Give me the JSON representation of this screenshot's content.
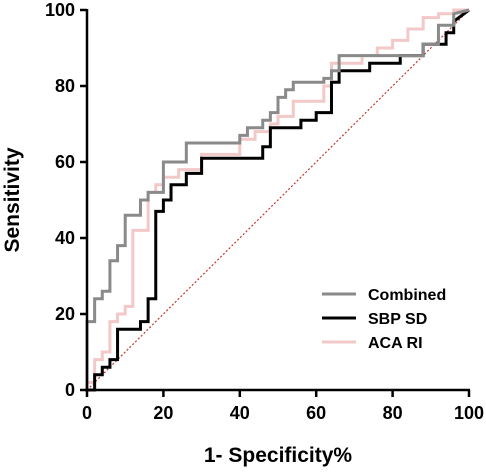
{
  "chart_data": {
    "type": "line",
    "title": "",
    "xlabel": "1- Specificity%",
    "ylabel": "Sensitivity",
    "xlim": [
      0,
      100
    ],
    "ylim": [
      0,
      100
    ],
    "x_ticks": [
      0,
      20,
      40,
      60,
      80,
      100
    ],
    "y_ticks": [
      0,
      20,
      40,
      60,
      80,
      100
    ],
    "grid": false,
    "legend_position": "bottom-right",
    "reference_line": {
      "color": "#c0392b",
      "style": "dotted",
      "points": [
        [
          0,
          0
        ],
        [
          100,
          100
        ]
      ]
    },
    "series": [
      {
        "name": "Combined",
        "color": "#8a8a8a",
        "x": [
          0,
          0,
          2,
          2,
          4,
          4,
          6,
          6,
          8,
          8,
          10,
          10,
          14,
          14,
          16,
          16,
          20,
          20,
          26,
          26,
          40,
          40,
          42,
          42,
          46,
          46,
          48,
          48,
          50,
          50,
          52,
          52,
          54,
          54,
          56,
          56,
          62,
          62,
          64,
          64,
          66,
          66,
          88,
          88,
          92,
          92,
          96,
          96,
          100
        ],
        "y": [
          0,
          18,
          18,
          24,
          24,
          26,
          26,
          34,
          34,
          38,
          38,
          46,
          46,
          50,
          50,
          52,
          52,
          60,
          60,
          65,
          65,
          67,
          67,
          69,
          69,
          71,
          71,
          73,
          73,
          77,
          77,
          79,
          79,
          81,
          81,
          81,
          81,
          82,
          82,
          84,
          84,
          88,
          88,
          91,
          91,
          96,
          96,
          99,
          100
        ]
      },
      {
        "name": "SBP SD",
        "color": "#000000",
        "x": [
          0,
          2,
          2,
          4,
          4,
          6,
          6,
          8,
          8,
          14,
          14,
          16,
          16,
          18,
          18,
          20,
          20,
          22,
          22,
          26,
          26,
          30,
          30,
          46,
          46,
          48,
          48,
          50,
          50,
          56,
          56,
          60,
          60,
          64,
          64,
          66,
          66,
          74,
          74,
          82,
          82,
          88,
          88,
          94,
          94,
          96,
          96,
          100
        ],
        "y": [
          0,
          0,
          4,
          4,
          6,
          6,
          8,
          8,
          16,
          16,
          18,
          18,
          24,
          24,
          47,
          47,
          50,
          50,
          54,
          54,
          57,
          57,
          61,
          61,
          64,
          64,
          69,
          69,
          69,
          69,
          71,
          71,
          73,
          73,
          81,
          81,
          84,
          84,
          86,
          86,
          88,
          88,
          91,
          91,
          94,
          94,
          97,
          100
        ]
      },
      {
        "name": "ACA RI",
        "color": "#f2c8c8",
        "x": [
          0,
          0,
          2,
          2,
          4,
          4,
          6,
          6,
          8,
          8,
          10,
          10,
          12,
          12,
          16,
          16,
          18,
          18,
          20,
          20,
          24,
          24,
          30,
          30,
          40,
          40,
          44,
          44,
          48,
          48,
          50,
          50,
          54,
          54,
          60,
          60,
          62,
          62,
          64,
          64,
          72,
          72,
          76,
          76,
          80,
          80,
          84,
          84,
          88,
          88,
          92,
          92,
          96,
          96,
          100
        ],
        "y": [
          0,
          2,
          2,
          8,
          8,
          10,
          10,
          18,
          18,
          20,
          20,
          22,
          22,
          42,
          42,
          52,
          52,
          54,
          54,
          56,
          56,
          58,
          58,
          62,
          62,
          66,
          66,
          68,
          68,
          70,
          70,
          72,
          72,
          76,
          76,
          76,
          76,
          80,
          80,
          86,
          86,
          88,
          88,
          90,
          90,
          92,
          92,
          95,
          95,
          98,
          98,
          99,
          99,
          100,
          100
        ]
      }
    ]
  }
}
